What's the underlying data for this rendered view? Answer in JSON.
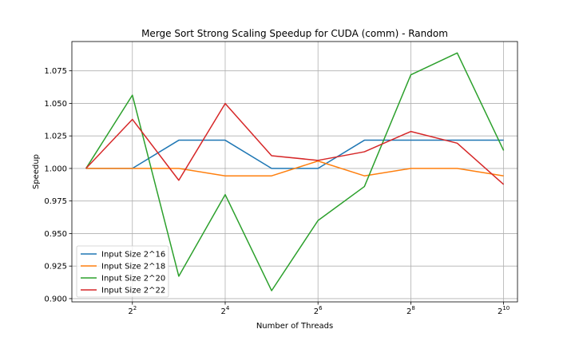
{
  "chart_data": {
    "type": "line",
    "title": "Merge Sort Strong Scaling Speedup for CUDA (comm) - Random",
    "xlabel": "Number of Threads",
    "ylabel": "Speedup",
    "x_scale": "log2",
    "x": [
      2,
      4,
      8,
      16,
      32,
      64,
      128,
      256,
      512,
      1024
    ],
    "xlim": [
      1.62,
      1260
    ],
    "ylim": [
      0.8975,
      1.0975
    ],
    "x_ticks": [
      {
        "value": 4,
        "base": "2",
        "exp": "2"
      },
      {
        "value": 16,
        "base": "2",
        "exp": "4"
      },
      {
        "value": 64,
        "base": "2",
        "exp": "6"
      },
      {
        "value": 256,
        "base": "2",
        "exp": "8"
      },
      {
        "value": 1024,
        "base": "2",
        "exp": "10"
      }
    ],
    "y_ticks": [
      {
        "value": 0.9,
        "label": "0.900"
      },
      {
        "value": 0.925,
        "label": "0.925"
      },
      {
        "value": 0.95,
        "label": "0.950"
      },
      {
        "value": 0.975,
        "label": "0.975"
      },
      {
        "value": 1.0,
        "label": "1.000"
      },
      {
        "value": 1.025,
        "label": "1.025"
      },
      {
        "value": 1.05,
        "label": "1.050"
      },
      {
        "value": 1.075,
        "label": "1.075"
      }
    ],
    "grid": true,
    "legend_position": "lower-left",
    "series": [
      {
        "name": "Input Size 2^16",
        "color": "#1f77b4",
        "values": [
          1.0,
          1.0,
          1.0217,
          1.0217,
          1.0,
          1.0,
          1.0217,
          1.0217,
          1.0217,
          1.0217
        ]
      },
      {
        "name": "Input Size 2^18",
        "color": "#ff7f0e",
        "values": [
          1.0,
          1.0,
          1.0,
          0.9943,
          0.9943,
          1.0057,
          0.9943,
          1.0,
          1.0,
          0.9943
        ]
      },
      {
        "name": "Input Size 2^20",
        "color": "#2ca02c",
        "values": [
          1.0,
          1.0563,
          0.9172,
          0.9799,
          0.9061,
          0.96,
          0.9861,
          1.0719,
          1.0887,
          1.0138
        ]
      },
      {
        "name": "Input Size 2^22",
        "color": "#d62728",
        "values": [
          1.0,
          1.0377,
          0.9909,
          1.0499,
          1.0098,
          1.0062,
          1.0128,
          1.0284,
          1.0194,
          0.9877
        ]
      }
    ]
  }
}
